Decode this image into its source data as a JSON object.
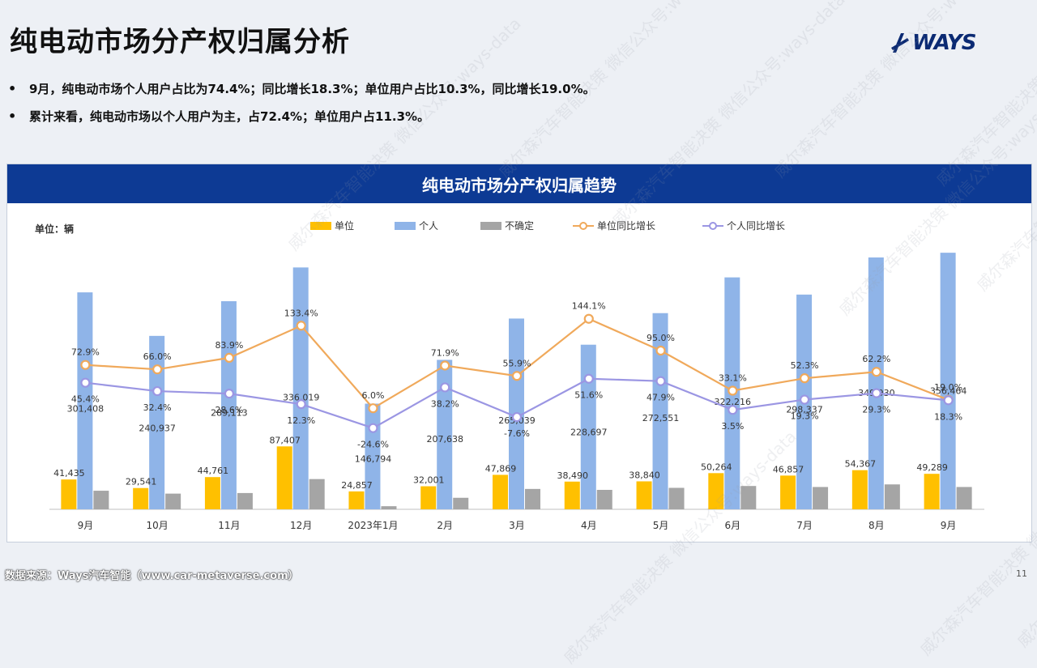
{
  "page": {
    "title": "纯电动市场分产权归属分析",
    "logo_text": "WAYS",
    "bullets": [
      "9月，纯电动市场个人用户占比为74.4%；同比增长18.3%；单位用户占比10.3%，同比增长19.0%。",
      "累计来看，纯电动市场以个人用户为主，占72.4%；单位用户占11.3%。"
    ],
    "panel_title": "纯电动市场分产权归属趋势",
    "unit_label": "单位：辆",
    "source": "数据来源：Ways汽车智能（www.car-metaverse.com）",
    "page_number": "11",
    "watermark": "威尔森汽车智能决策 微信公众号:ways-data"
  },
  "chart_data": {
    "type": "bar",
    "categories": [
      "9月",
      "10月",
      "11月",
      "12月",
      "2023年1月",
      "2月",
      "3月",
      "4月",
      "5月",
      "6月",
      "7月",
      "8月",
      "9月"
    ],
    "series": [
      {
        "name": "单位",
        "kind": "bar",
        "color": "#ffc000",
        "values": [
          41435,
          29541,
          44761,
          87407,
          24857,
          32001,
          47869,
          38490,
          38840,
          50264,
          46857,
          54367,
          49289
        ]
      },
      {
        "name": "个人",
        "kind": "bar",
        "color": "#8fb4e8",
        "values": [
          301408,
          240937,
          289113,
          336019,
          146794,
          207638,
          265039,
          228697,
          272551,
          322216,
          298337,
          349930,
          356464
        ]
      },
      {
        "name": "不确定",
        "kind": "bar",
        "color": "#a5a5a5",
        "values": [
          25800,
          21800,
          22600,
          42000,
          4300,
          16000,
          28300,
          27000,
          29800,
          32400,
          31000,
          34600,
          31000
        ]
      },
      {
        "name": "单位同比增长",
        "kind": "line",
        "color": "#f0a95b",
        "values": [
          72.9,
          66.0,
          83.9,
          133.4,
          6.0,
          71.9,
          55.9,
          144.1,
          95.0,
          33.1,
          52.3,
          62.2,
          19.0
        ]
      },
      {
        "name": "个人同比增长",
        "kind": "line",
        "color": "#9b96e3",
        "values": [
          45.4,
          32.4,
          28.6,
          12.3,
          -24.6,
          38.2,
          -7.6,
          51.6,
          47.9,
          3.5,
          19.3,
          29.3,
          18.3
        ]
      }
    ],
    "bar_labels": {
      "单位": [
        "41,435",
        "29,541",
        "44,761",
        "87,407",
        "24,857",
        "32,001",
        "47,869",
        "38,490",
        "38,840",
        "50,264",
        "46,857",
        "54,367",
        "49,289"
      ],
      "个人": [
        "301,408",
        "240,937",
        "289,113",
        "336,019",
        "146,794",
        "207,638",
        "265,039",
        "228,697",
        "272,551",
        "322,216",
        "298,337",
        "349,930",
        "356,464"
      ]
    },
    "line_labels": {
      "单位同比增长": [
        "72.9%",
        "66.0%",
        "83.9%",
        "133.4%",
        "6.0%",
        "71.9%",
        "55.9%",
        "144.1%",
        "95.0%",
        "33.1%",
        "52.3%",
        "62.2%",
        "19.0%"
      ],
      "个人同比增长": [
        "45.4%",
        "32.4%",
        "28.6%",
        "12.3%",
        "-24.6%",
        "38.2%",
        "-7.6%",
        "51.6%",
        "47.9%",
        "3.5%",
        "19.3%",
        "29.3%",
        "18.3%"
      ]
    },
    "legend_position": "top",
    "grid": false
  }
}
